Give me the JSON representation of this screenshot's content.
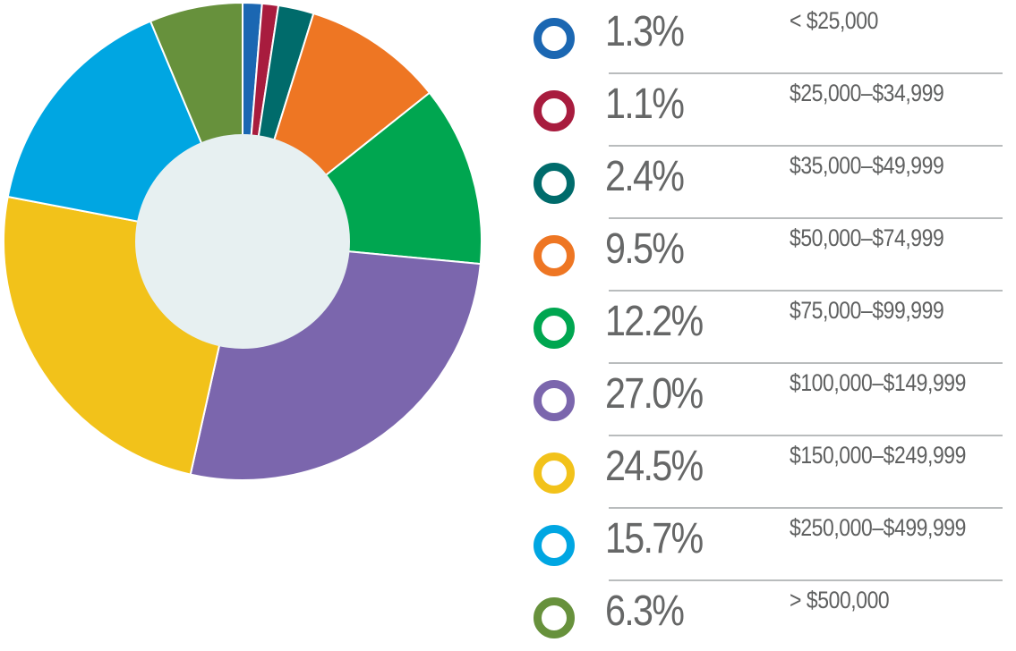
{
  "chart_data": {
    "type": "pie",
    "variant": "donut",
    "categories": [
      "< $25,000",
      "$25,000–$34,999",
      "$35,000–$49,999",
      "$50,000–$74,999",
      "$75,000–$99,999",
      "$100,000–$149,999",
      "$150,000–$249,999",
      "$250,000–$499,999",
      "> $500,000"
    ],
    "percent_labels": [
      "1.3%",
      "1.1%",
      "2.4%",
      "9.5%",
      "12.2%",
      "27.0%",
      "24.5%",
      "15.7%",
      "6.3%"
    ],
    "values": [
      1.3,
      1.1,
      2.4,
      9.5,
      12.2,
      27.0,
      24.5,
      15.7,
      6.3
    ],
    "colors": [
      "#1b67b2",
      "#a81c3e",
      "#006b6b",
      "#ee7623",
      "#00a650",
      "#7b66ad",
      "#f2c21a",
      "#00a6e2",
      "#67913c"
    ],
    "center_color": "#e7f0f1",
    "legend_placement": "right"
  }
}
